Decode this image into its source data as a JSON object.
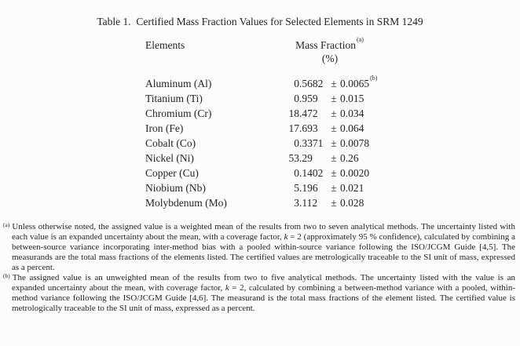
{
  "title": "Table 1.  Certified Mass Fraction Values for Selected Elements in SRM 1249",
  "table": {
    "elements_header": "Elements",
    "mass_fraction_header": "Mass Fraction",
    "mass_fraction_note": "(a)",
    "unit": "(%)",
    "plus_minus": "±",
    "rows": [
      {
        "element": "Aluminum (Al)",
        "value": "0.5682",
        "uncertainty": "0.0065",
        "note": "(b)"
      },
      {
        "element": "Titanium (Ti)",
        "value": "0.959",
        "uncertainty": "0.015"
      },
      {
        "element": "Chromium (Cr)",
        "value": "18.472",
        "uncertainty": "0.034"
      },
      {
        "element": "Iron (Fe)",
        "value": "17.693",
        "uncertainty": "0.064"
      },
      {
        "element": "Cobalt (Co)",
        "value": "0.3371",
        "uncertainty": "0.0078"
      },
      {
        "element": "Nickel (Ni)",
        "value": "53.29",
        "uncertainty": "0.26"
      },
      {
        "element": "Copper (Cu)",
        "value": "0.1402",
        "uncertainty": "0.0020"
      },
      {
        "element": "Niobium (Nb)",
        "value": "5.196",
        "uncertainty": "0.021"
      },
      {
        "element": "Molybdenum (Mo)",
        "value": "3.112",
        "uncertainty": "0.028"
      }
    ]
  },
  "footnotes": [
    {
      "marker": "(a)",
      "segments": [
        {
          "text": "Unless otherwise noted, the assigned value is a weighted mean of the results from two to seven analytical methods.  The uncertainty listed with each value is an expanded uncertainty about the mean, with a coverage factor, "
        },
        {
          "text": "k",
          "italic": true
        },
        {
          "text": " = 2 (approximately 95 % confidence), calculated by combining a between-source variance incorporating inter-method bias with a pooled within-source variance following the ISO/JCGM Guide [4,5].  The measurands are the total mass fractions of the elements listed.  The certified values are metrologically traceable to the SI unit of mass, expressed as a percent."
        }
      ]
    },
    {
      "marker": "(b)",
      "segments": [
        {
          "text": "The assigned value is an unweighted mean of the results from two to five analytical methods.  The uncertainty listed with the value is an expanded uncertainty about the mean, with coverage factor, "
        },
        {
          "text": "k",
          "italic": true
        },
        {
          "text": " = 2, calculated by combining a between-method variance with a pooled, within-method variance following the ISO/JCGM Guide [4,6].  The measurand is the total mass fractions of the element listed.  The certified value is metrologically traceable to the SI unit of mass, expressed as a percent."
        }
      ]
    }
  ]
}
